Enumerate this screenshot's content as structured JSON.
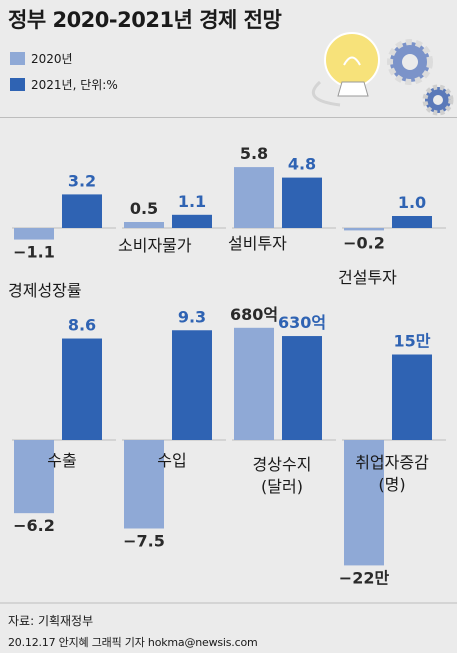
{
  "title": "정부 2020-2021년 경제 전망",
  "legend": [
    {
      "label": "2020년",
      "color": "#8fa9d6"
    },
    {
      "label": "2021년, 단위:%",
      "color": "#2f63b3"
    }
  ],
  "colors": {
    "y2020": "#8fa9d6",
    "y2021": "#2f63b3",
    "text2021": "#2f63b3"
  },
  "source": "자료: 기획재정부",
  "credit": "20.12.17 안지혜 그래픽 기자 hokma@newsis.com",
  "chart_data": [
    {
      "type": "bar",
      "category": "경제성장률",
      "categories": [
        "2020년",
        "2021년"
      ],
      "values": [
        -1.1,
        3.2
      ],
      "labels": [
        "−1.1",
        "3.2"
      ]
    },
    {
      "type": "bar",
      "category": "소비자물가",
      "categories": [
        "2020년",
        "2021년"
      ],
      "values": [
        0.5,
        1.1
      ],
      "labels": [
        "0.5",
        "1.1"
      ]
    },
    {
      "type": "bar",
      "category": "설비투자",
      "categories": [
        "2020년",
        "2021년"
      ],
      "values": [
        5.8,
        4.8
      ],
      "labels": [
        "5.8",
        "4.8"
      ]
    },
    {
      "type": "bar",
      "category": "건설투자",
      "categories": [
        "2020년",
        "2021년"
      ],
      "values": [
        -0.2,
        1.0
      ],
      "labels": [
        "−0.2",
        "1.0"
      ]
    },
    {
      "type": "bar",
      "category": "수출",
      "categories": [
        "2020년",
        "2021년"
      ],
      "values": [
        -6.2,
        8.6
      ],
      "labels": [
        "−6.2",
        "8.6"
      ]
    },
    {
      "type": "bar",
      "category": "수입",
      "categories": [
        "2020년",
        "2021년"
      ],
      "values": [
        -7.5,
        9.3
      ],
      "labels": [
        "−7.5",
        "9.3"
      ]
    },
    {
      "type": "bar",
      "category": "경상수지\n(달러)",
      "categories": [
        "2020년",
        "2021년"
      ],
      "values": [
        680,
        630
      ],
      "labels": [
        "680억",
        "630억"
      ]
    },
    {
      "type": "bar",
      "category": "취업자증감\n(명)",
      "categories": [
        "2020년",
        "2021년"
      ],
      "values": [
        -220000,
        150000
      ],
      "labels": [
        "−22만",
        "15만"
      ]
    }
  ]
}
